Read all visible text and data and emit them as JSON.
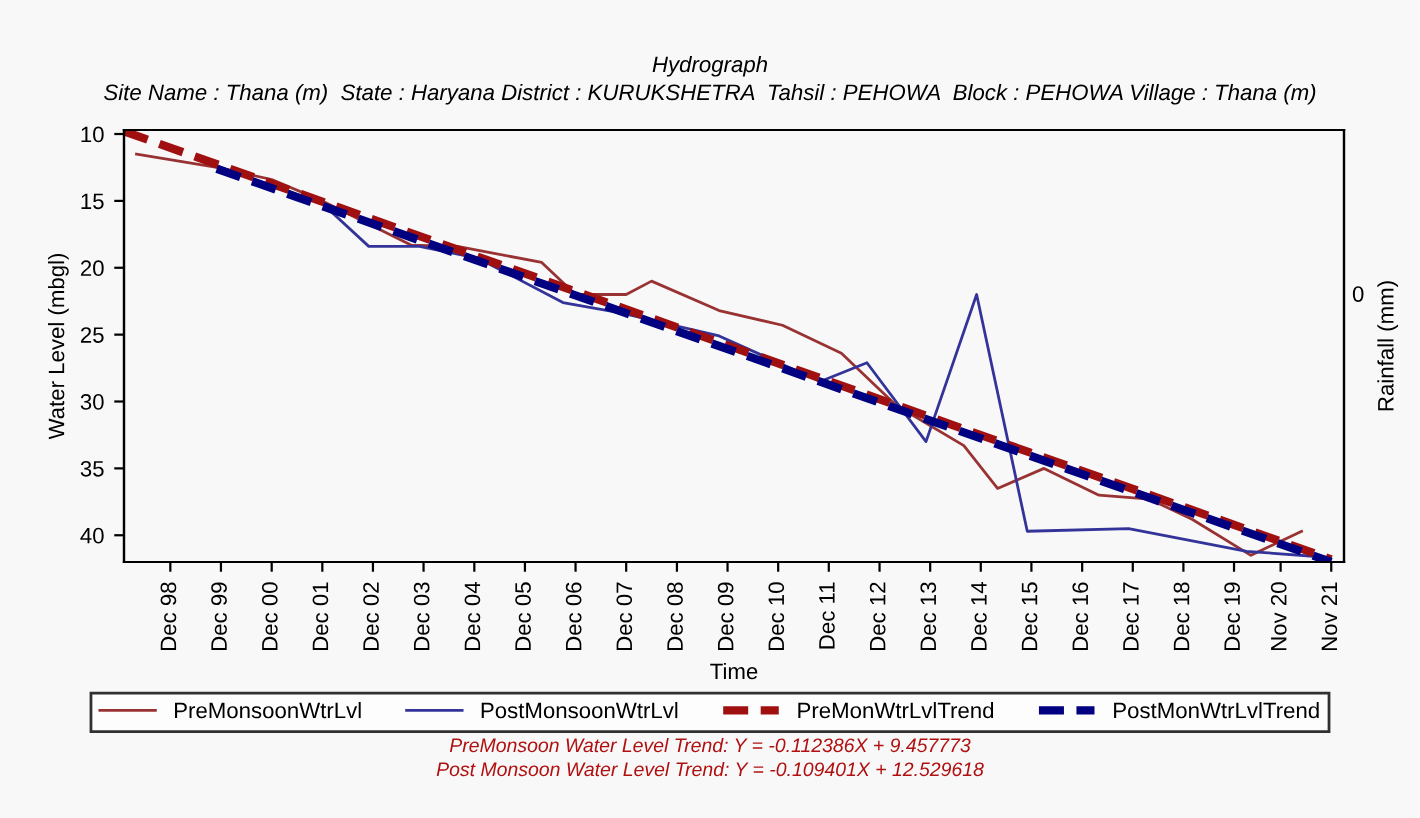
{
  "chart_data": {
    "type": "line",
    "title": "Hydrograph",
    "subtitle": "Site Name : Thana (m)  State : Haryana District : KURUKSHETRA  Tahsil : PEHOWA  Block : PEHOWA Village : Thana (m)",
    "xlabel": "Time",
    "ylabel": "Water Level (mbgl)",
    "y2label": "Rainfall (mm)",
    "xlim": [
      "1998-01",
      "2022-02"
    ],
    "ylim": [
      42,
      9.7
    ],
    "yticks": [
      10,
      15,
      20,
      25,
      30,
      35,
      40
    ],
    "xticks": [
      {
        "value": "1998-12",
        "label": "Dec 98"
      },
      {
        "value": "1999-12",
        "label": "Dec 99"
      },
      {
        "value": "2000-12",
        "label": "Dec 00"
      },
      {
        "value": "2001-12",
        "label": "Dec 01"
      },
      {
        "value": "2002-12",
        "label": "Dec 02"
      },
      {
        "value": "2003-12",
        "label": "Dec 03"
      },
      {
        "value": "2004-12",
        "label": "Dec 04"
      },
      {
        "value": "2005-12",
        "label": "Dec 05"
      },
      {
        "value": "2006-12",
        "label": "Dec 06"
      },
      {
        "value": "2007-12",
        "label": "Dec 07"
      },
      {
        "value": "2008-12",
        "label": "Dec 08"
      },
      {
        "value": "2009-12",
        "label": "Dec 09"
      },
      {
        "value": "2010-12",
        "label": "Dec 10"
      },
      {
        "value": "2011-12",
        "label": "Dec 11"
      },
      {
        "value": "2012-12",
        "label": "Dec 12"
      },
      {
        "value": "2013-12",
        "label": "Dec 13"
      },
      {
        "value": "2014-12",
        "label": "Dec 14"
      },
      {
        "value": "2015-12",
        "label": "Dec 15"
      },
      {
        "value": "2016-12",
        "label": "Dec 16"
      },
      {
        "value": "2017-12",
        "label": "Dec 17"
      },
      {
        "value": "2018-12",
        "label": "Dec 18"
      },
      {
        "value": "2019-12",
        "label": "Dec 19"
      },
      {
        "value": "2020-11",
        "label": "Nov 20"
      },
      {
        "value": "2021-11",
        "label": "Nov 21"
      }
    ],
    "grid": false,
    "legend": "bottom",
    "marker": "none",
    "series": [
      {
        "name": "PreMonsoonWtrLvl",
        "color": "#993333",
        "line_style": "solid",
        "x": [
          "1998-04",
          "1999-11",
          "2000-12",
          "2001-12",
          "2003-09",
          "2004-08",
          "2006-04",
          "2006-12",
          "2007-12",
          "2008-06",
          "2009-10",
          "2011-01",
          "2012-03",
          "2013-04",
          "2014-08",
          "2015-04",
          "2016-03",
          "2017-04",
          "2018-04",
          "2019-02",
          "2020-04",
          "2021-04"
        ],
        "values": [
          11.5,
          12.5,
          13.4,
          15,
          18.3,
          18.4,
          19.6,
          22,
          22,
          21,
          23.2,
          24.3,
          26.4,
          30.3,
          33.3,
          36.5,
          35,
          37,
          37.3,
          38.8,
          41.5,
          39.7
        ]
      },
      {
        "name": "PostMonsoonWtrLvl",
        "color": "#333399",
        "line_style": "solid",
        "x": [
          "1999-11",
          "2001-12",
          "2002-11",
          "2003-11",
          "2005-01",
          "2006-09",
          "2007-11",
          "2009-10",
          "2011-10",
          "2012-09",
          "2013-11",
          "2014-11",
          "2015-11",
          "2017-11",
          "2020-03",
          "2021-08"
        ],
        "values": [
          12.4,
          15.2,
          18.4,
          18.4,
          19.3,
          22.6,
          23.4,
          25.1,
          28.5,
          27.1,
          33,
          22,
          39.7,
          39.5,
          41.2,
          41.6
        ]
      },
      {
        "name": "PreMonWtrLvlTrend",
        "color": "#a01010",
        "line_style": "dashed",
        "x": [
          "1998-01",
          "2021-11"
        ],
        "values": [
          9.8,
          41.8
        ]
      },
      {
        "name": "PostMonWtrLvlTrend",
        "color": "#000080",
        "line_style": "dashed",
        "x": [
          "1999-11",
          "2021-11"
        ],
        "values": [
          12.6,
          42
        ]
      }
    ],
    "annotations": [
      "PreMonsoon Water Level Trend: Y = -0.112386X + 9.457773",
      "Post Monsoon Water Level Trend: Y = -0.109401X + 12.529618",
      "0"
    ]
  }
}
